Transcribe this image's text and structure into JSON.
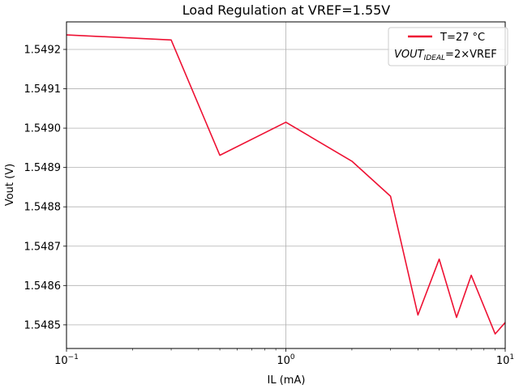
{
  "chart_data": {
    "type": "line",
    "title": "Load Regulation at VREF=1.55V",
    "xlabel": "IL (mA)",
    "ylabel": "Vout (V)",
    "xscale": "log",
    "xlim": [
      0.1,
      10
    ],
    "ylim": [
      1.54844,
      1.54927
    ],
    "grid": true,
    "legend_position": "top-right",
    "x_tick_labels": [
      {
        "value": 0.1,
        "base": "10",
        "exp": "−1"
      },
      {
        "value": 1,
        "base": "10",
        "exp": "0"
      },
      {
        "value": 10,
        "base": "10",
        "exp": "1"
      }
    ],
    "y_ticks": [
      1.5485,
      1.5486,
      1.5487,
      1.5488,
      1.5489,
      1.549,
      1.5491,
      1.5492
    ],
    "y_tick_labels": [
      "1.5485",
      "1.5486",
      "1.5487",
      "1.5488",
      "1.5489",
      "1.5490",
      "1.5491",
      "1.5492"
    ],
    "series": [
      {
        "name": "T=27 °C",
        "color": "#ee1133",
        "x": [
          0.1,
          0.3,
          0.5,
          1,
          2,
          3,
          4,
          5,
          6,
          7,
          9,
          10
        ],
        "y": [
          1.549237,
          1.549224,
          1.548931,
          1.549015,
          1.548916,
          1.548827,
          1.548525,
          1.548667,
          1.548519,
          1.548626,
          1.548477,
          1.548506
        ]
      }
    ],
    "legend_extra": {
      "var": "VOUT",
      "sub": "IDEAL",
      "rest": "=2×VREF"
    }
  }
}
